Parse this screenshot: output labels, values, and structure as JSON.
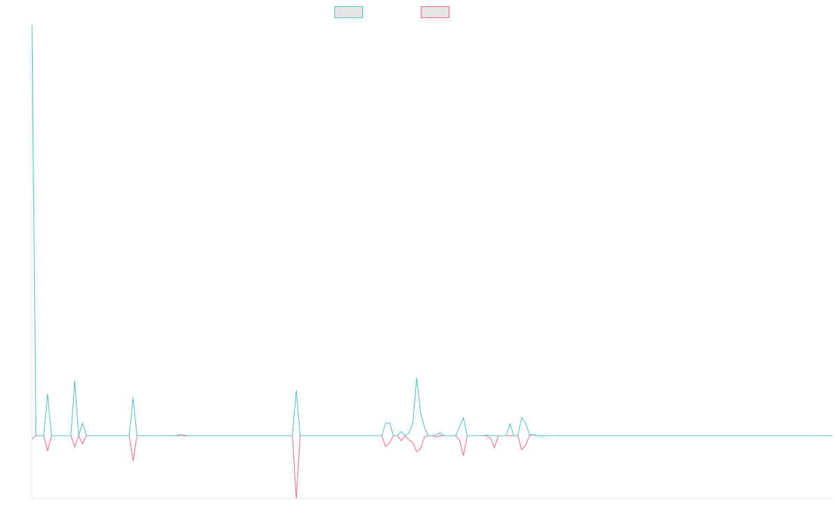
{
  "chart_data": {
    "type": "line",
    "series": [
      {
        "color": "#4bc0c0",
        "values": [
          100,
          0,
          0,
          0,
          10.2,
          0,
          0,
          0,
          0,
          0,
          0,
          13.4,
          0,
          3.1,
          0,
          0,
          0,
          0,
          0,
          0,
          0,
          0,
          0,
          0,
          0,
          0,
          9.3,
          0,
          0,
          0,
          0,
          0,
          0,
          0,
          0,
          0,
          0,
          0,
          0,
          0.2,
          0,
          0,
          0,
          0,
          0,
          0,
          0,
          0,
          0,
          0,
          0,
          0,
          0,
          0,
          0,
          0,
          0,
          0,
          0,
          0,
          0,
          0,
          0,
          0,
          0,
          0,
          0,
          0,
          11,
          0,
          0,
          0,
          0,
          0,
          0,
          0,
          0,
          0,
          0,
          0,
          0,
          0,
          0,
          0,
          0,
          0,
          0,
          0,
          0,
          0,
          0,
          3.1,
          3.1,
          0,
          0,
          1,
          0,
          0.7,
          3.1,
          14.1,
          5.6,
          2,
          0,
          0,
          0.2,
          0.8,
          0,
          0,
          0,
          0,
          2.2,
          4.4,
          0,
          0,
          0,
          0,
          0,
          0.2,
          0,
          0,
          0,
          0,
          0,
          2.9,
          0,
          0,
          4.4,
          3.1,
          0.3,
          0.2,
          0,
          0,
          0,
          0,
          0,
          0,
          0,
          0,
          0,
          0,
          0,
          0,
          0,
          0,
          0,
          0,
          0,
          0,
          0,
          0,
          0,
          0,
          0,
          0,
          0,
          0,
          0,
          0,
          0,
          0,
          0,
          0,
          0,
          0,
          0,
          0,
          0,
          0,
          0,
          0,
          0,
          0,
          0,
          0,
          0,
          0,
          0,
          0,
          0,
          0,
          0,
          0,
          0,
          0,
          0,
          0,
          0,
          0,
          0,
          0,
          0,
          0,
          0,
          0,
          0,
          0,
          0,
          0,
          0,
          0,
          0,
          0,
          0,
          0,
          0,
          0,
          0
        ]
      },
      {
        "color": "#ff6384",
        "values": [
          -0.8,
          0,
          0,
          0,
          -3.7,
          0,
          0,
          0,
          0,
          0,
          0,
          -2.7,
          0,
          -2,
          0,
          0,
          0,
          0,
          0,
          0,
          0,
          0,
          0,
          0,
          0,
          0,
          -6.1,
          0,
          0,
          0,
          0,
          0,
          0,
          0,
          0,
          0,
          0,
          0,
          0.3,
          0,
          0,
          0,
          0,
          0,
          0,
          0,
          0,
          0,
          0,
          0,
          0,
          0,
          0,
          0,
          0,
          0,
          0,
          0,
          0,
          0,
          0,
          0,
          0,
          0,
          0,
          0,
          0,
          0,
          -15.25,
          0,
          0,
          0,
          0,
          0,
          0,
          0,
          0,
          0,
          0,
          0,
          0,
          0,
          0,
          0,
          0,
          0,
          0,
          0,
          0,
          0,
          0,
          -2.7,
          -1.7,
          0,
          0,
          -1.2,
          0,
          -1,
          -1.7,
          -3.9,
          -3.1,
          -0.3,
          0,
          0,
          -0.3,
          0,
          0,
          0,
          0,
          0,
          -1,
          -4.9,
          0,
          0,
          0,
          0,
          0,
          0,
          -0.7,
          -2.9,
          0,
          0,
          0,
          0,
          0,
          0,
          -3.4,
          -2.4,
          0,
          0.3,
          0,
          0,
          0,
          0,
          0,
          0,
          0,
          0,
          0,
          0,
          0,
          0,
          0,
          0,
          0,
          0,
          0,
          0,
          0,
          0,
          0,
          0,
          0,
          0,
          0,
          0,
          0,
          0,
          0,
          0,
          0,
          0,
          0,
          0,
          0,
          0,
          0,
          0,
          0,
          0,
          0,
          0,
          0,
          0,
          0,
          0,
          0,
          0,
          0,
          0,
          0,
          0,
          0,
          0,
          0,
          0,
          0,
          0,
          0,
          0,
          0,
          0,
          0,
          0,
          0,
          0,
          0,
          0,
          0,
          0,
          0,
          0,
          0,
          0,
          0,
          0,
          0
        ]
      }
    ],
    "xlim": [
      0,
      206
    ],
    "ylim": [
      -15.25,
      100
    ]
  }
}
